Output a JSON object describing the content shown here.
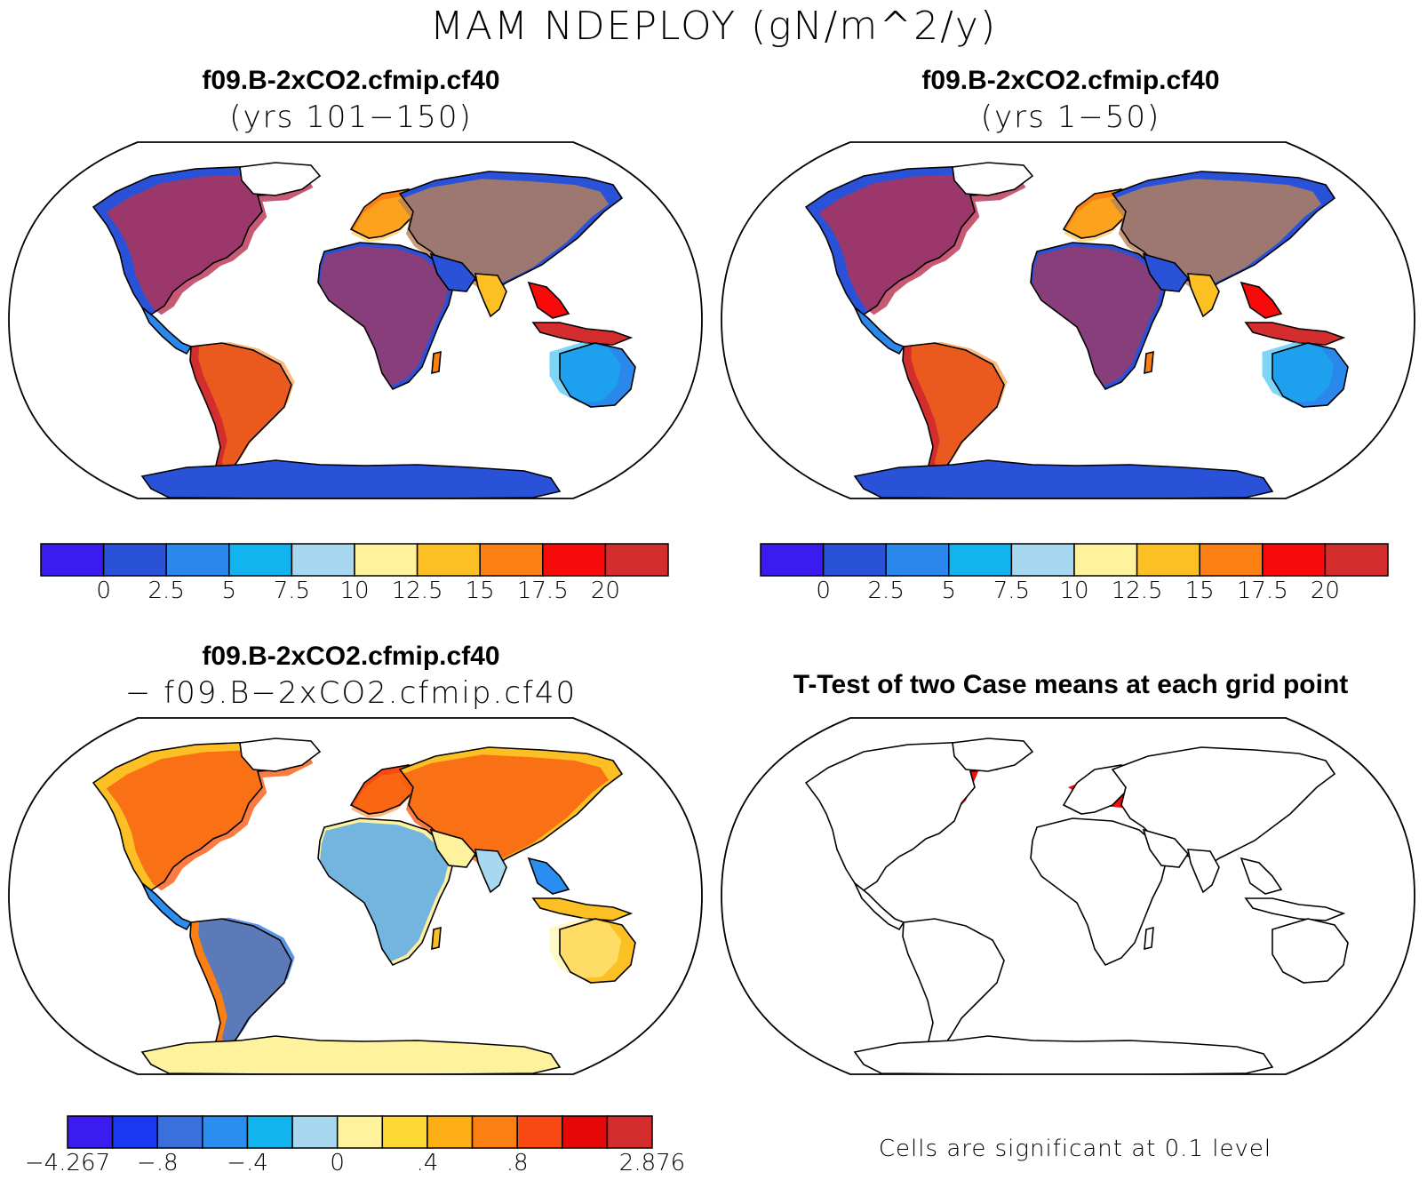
{
  "title": "MAM NDEPLOY (gN/m^2/y)",
  "panels": [
    {
      "id": "case1",
      "title": "f09.B-2xCO2.cfmip.cf40",
      "subtitle": "(yrs 101−150)"
    },
    {
      "id": "case2",
      "title": "f09.B-2xCO2.cfmip.cf40",
      "subtitle": "(yrs 1−50)"
    },
    {
      "id": "diff",
      "title": "f09.B-2xCO2.cfmip.cf40",
      "subtitle": "− f09.B−2xCO2.cfmip.cf40"
    },
    {
      "id": "ttest",
      "title": "T-Test of two Case means at each grid point",
      "subtitle": ""
    }
  ],
  "colorbars": {
    "abs": {
      "colors": [
        "#3a1cf0",
        "#2a52d8",
        "#2a87ec",
        "#12b4f0",
        "#a8d8f0",
        "#fff29c",
        "#fdc024",
        "#fb7f12",
        "#f80a0a",
        "#d42d2d"
      ],
      "labels": [
        "0",
        "2.5",
        "5",
        "7.5",
        "10",
        "12.5",
        "15",
        "17.5",
        "20"
      ]
    },
    "diff": {
      "colors": [
        "#3a1cf0",
        "#1a38f0",
        "#3a70dc",
        "#2a8ef0",
        "#12b4f0",
        "#a8d8f0",
        "#fff29c",
        "#fcd832",
        "#fdae14",
        "#fb7f12",
        "#f84a12",
        "#e60808",
        "#d42d2d"
      ],
      "labels": [
        "−4.267",
        "−.8",
        "−.4",
        "0",
        ".4",
        ".8",
        "2.876"
      ]
    }
  },
  "ttest_note": "Cells are significant at 0.1 level"
}
